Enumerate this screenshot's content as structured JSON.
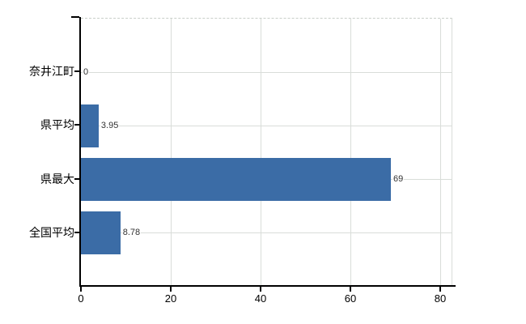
{
  "chart_data": {
    "type": "bar",
    "orientation": "horizontal",
    "title": "",
    "categories": [
      "奈井江町",
      "県平均",
      "県最大",
      "全国平均"
    ],
    "values": [
      0,
      3.95,
      69,
      8.78
    ],
    "value_labels": [
      "0",
      "3.95",
      "69",
      "8.78"
    ],
    "x_tick_labels": [
      "0",
      "20",
      "40",
      "60",
      "80"
    ],
    "x_tick_values": [
      0,
      20,
      40,
      60,
      80
    ],
    "xlim": [
      0,
      82.7
    ],
    "grid": "on",
    "legend": "none"
  },
  "style": {
    "bar_color": "#3b6ca6",
    "axis_color": "#000000",
    "grid_color": "#d9ddd9",
    "value_label_color": "#333333",
    "background": "#ffffff"
  }
}
